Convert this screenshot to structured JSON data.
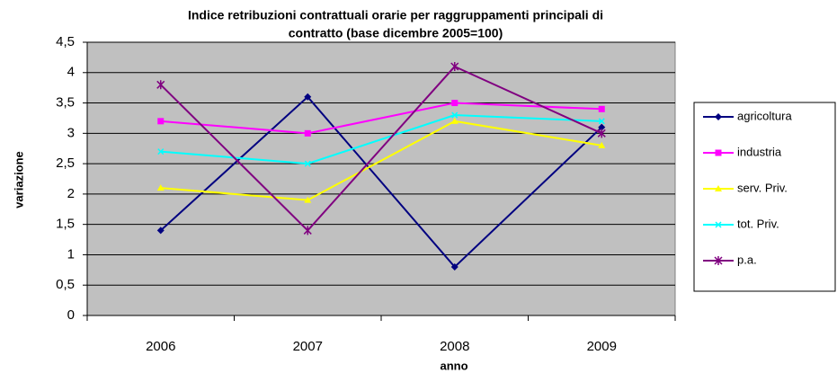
{
  "chart_data": {
    "type": "line",
    "title": [
      "Indice retribuzioni contrattuali orarie per raggruppamenti principali di",
      "contratto (base dicembre 2005=100)"
    ],
    "xlabel": "anno",
    "ylabel": "variazione",
    "categories": [
      "2006",
      "2007",
      "2008",
      "2009"
    ],
    "series": [
      {
        "name": "agricoltura",
        "color": "#000080",
        "marker": "diamond",
        "values": [
          1.4,
          3.6,
          0.8,
          3.1
        ]
      },
      {
        "name": "industria",
        "color": "#ff00ff",
        "marker": "square",
        "values": [
          3.2,
          3.0,
          3.5,
          3.4
        ]
      },
      {
        "name": "serv. Priv.",
        "color": "#ffff00",
        "marker": "triangle",
        "values": [
          2.1,
          1.9,
          3.2,
          2.8
        ]
      },
      {
        "name": "tot. Priv.",
        "color": "#00ffff",
        "marker": "x",
        "values": [
          2.7,
          2.5,
          3.3,
          3.2
        ]
      },
      {
        "name": "p.a.",
        "color": "#800080",
        "marker": "star",
        "values": [
          3.8,
          1.4,
          4.1,
          3.0
        ]
      }
    ],
    "ylim": [
      0,
      4.5
    ],
    "yticks": [
      0,
      {
        "value": 0.5,
        "label": "0,5"
      },
      1,
      {
        "value": 1.5,
        "label": "1,5"
      },
      2,
      {
        "value": 2.5,
        "label": "2,5"
      },
      3,
      {
        "value": 3.5,
        "label": "3,5"
      },
      4,
      {
        "value": 4.5,
        "label": "4,5"
      }
    ],
    "grid": true,
    "legend": "right",
    "plot_background": "#c0c0c0"
  }
}
